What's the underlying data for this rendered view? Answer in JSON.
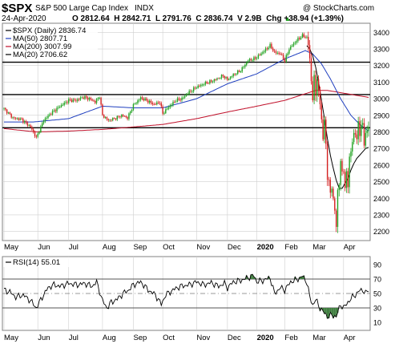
{
  "header": {
    "symbol": "$SPX",
    "name": "S&P 500 Large Cap Index",
    "exchange": "INDX",
    "watermark": "@ StockCharts.com",
    "date": "24-Apr-2020",
    "ohlc_text": "O 2812.64  H 2842.71  L 2791.76  C 2836.74  V 2.9B  Chg +38.94 (+1.39%)",
    "chg_marker": "▲"
  },
  "legend": [
    {
      "label": "$SPX (Daily) 2836.74",
      "color": "#000000",
      "style": "candles"
    },
    {
      "label": "MA(50) 2807.71",
      "color": "#1f3fbf",
      "style": "line"
    },
    {
      "label": "MA(200) 3007.99",
      "color": "#c0102a",
      "style": "line"
    },
    {
      "label": "MA(20) 2706.62",
      "color": "#000000",
      "style": "line"
    }
  ],
  "rsi_legend": {
    "label": "RSI(14) 55.01"
  },
  "colors": {
    "up": "#22a322",
    "down": "#d42020",
    "ma50": "#1f3fbf",
    "ma200": "#c0102a",
    "ma20": "#000000",
    "grid": "#cfcfcf",
    "rsi_fill": "#3d7d3d",
    "hline": "#000000"
  },
  "chart_data": [
    {
      "type": "candlestick",
      "title": "$SPX S&P 500 Large Cap Index INDX",
      "xlabel": "",
      "ylabel": "",
      "ylim": [
        2150,
        3450
      ],
      "y_ticks": [
        2200,
        2300,
        2400,
        2500,
        2600,
        2700,
        2800,
        2900,
        3000,
        3100,
        3200,
        3300,
        3400
      ],
      "x_tick_labels": [
        "May",
        "Jun",
        "Jul",
        "Aug",
        "Sep",
        "Oct",
        "Nov",
        "Dec",
        "2020",
        "Feb",
        "Mar",
        "Apr"
      ],
      "x_ticks_day": [
        0,
        23,
        44,
        67,
        88,
        108,
        131,
        152,
        172,
        191,
        210,
        231
      ],
      "horizontal_lines": [
        3220,
        3025,
        2825
      ],
      "close_anchors": [
        [
          0,
          2940
        ],
        [
          6,
          2885
        ],
        [
          12,
          2875
        ],
        [
          18,
          2830
        ],
        [
          22,
          2765
        ],
        [
          27,
          2870
        ],
        [
          33,
          2920
        ],
        [
          39,
          2960
        ],
        [
          44,
          2990
        ],
        [
          49,
          2990
        ],
        [
          54,
          3010
        ],
        [
          58,
          3000
        ],
        [
          62,
          2980
        ],
        [
          65,
          3015
        ],
        [
          67,
          2900
        ],
        [
          71,
          2870
        ],
        [
          75,
          2880
        ],
        [
          80,
          2900
        ],
        [
          84,
          2885
        ],
        [
          88,
          2960
        ],
        [
          93,
          3005
        ],
        [
          98,
          2985
        ],
        [
          102,
          2965
        ],
        [
          106,
          2980
        ],
        [
          108,
          2910
        ],
        [
          112,
          2950
        ],
        [
          117,
          2990
        ],
        [
          121,
          3000
        ],
        [
          126,
          3040
        ],
        [
          131,
          3070
        ],
        [
          136,
          3090
        ],
        [
          141,
          3105
        ],
        [
          145,
          3120
        ],
        [
          149,
          3140
        ],
        [
          152,
          3115
        ],
        [
          156,
          3145
        ],
        [
          161,
          3170
        ],
        [
          166,
          3230
        ],
        [
          170,
          3240
        ],
        [
          172,
          3250
        ],
        [
          176,
          3280
        ],
        [
          181,
          3320
        ],
        [
          184,
          3280
        ],
        [
          188,
          3270
        ],
        [
          191,
          3230
        ],
        [
          194,
          3300
        ],
        [
          199,
          3350
        ],
        [
          203,
          3380
        ],
        [
          206,
          3370
        ],
        [
          207,
          3330
        ],
        [
          208,
          3230
        ],
        [
          209,
          3120
        ],
        [
          210,
          3000
        ],
        [
          211,
          3110
        ],
        [
          212,
          3040
        ],
        [
          213,
          3130
        ],
        [
          214,
          3020
        ],
        [
          215,
          2980
        ],
        [
          216,
          2880
        ],
        [
          217,
          2750
        ],
        [
          218,
          2880
        ],
        [
          219,
          2710
        ],
        [
          220,
          2530
        ],
        [
          221,
          2520
        ],
        [
          222,
          2400
        ],
        [
          223,
          2480
        ],
        [
          224,
          2410
        ],
        [
          225,
          2300
        ],
        [
          226,
          2240
        ],
        [
          227,
          2450
        ],
        [
          228,
          2480
        ],
        [
          229,
          2630
        ],
        [
          230,
          2540
        ],
        [
          231,
          2580
        ],
        [
          232,
          2470
        ],
        [
          233,
          2530
        ],
        [
          234,
          2490
        ],
        [
          235,
          2660
        ],
        [
          236,
          2660
        ],
        [
          237,
          2750
        ],
        [
          238,
          2790
        ],
        [
          239,
          2790
        ],
        [
          240,
          2760
        ],
        [
          241,
          2840
        ],
        [
          242,
          2800
        ],
        [
          243,
          2850
        ],
        [
          244,
          2820
        ],
        [
          245,
          2740
        ],
        [
          246,
          2800
        ],
        [
          247,
          2790
        ],
        [
          248,
          2840
        ]
      ],
      "ma50_anchors": [
        [
          0,
          2860
        ],
        [
          20,
          2860
        ],
        [
          44,
          2880
        ],
        [
          67,
          2955
        ],
        [
          88,
          2945
        ],
        [
          108,
          2945
        ],
        [
          131,
          3000
        ],
        [
          152,
          3090
        ],
        [
          172,
          3150
        ],
        [
          191,
          3240
        ],
        [
          205,
          3290
        ],
        [
          210,
          3270
        ],
        [
          216,
          3210
        ],
        [
          222,
          3120
        ],
        [
          229,
          3000
        ],
        [
          236,
          2900
        ],
        [
          242,
          2845
        ],
        [
          248,
          2805
        ]
      ],
      "ma200_anchors": [
        [
          0,
          2820
        ],
        [
          22,
          2800
        ],
        [
          44,
          2805
        ],
        [
          67,
          2815
        ],
        [
          88,
          2830
        ],
        [
          108,
          2845
        ],
        [
          131,
          2880
        ],
        [
          152,
          2920
        ],
        [
          172,
          2955
        ],
        [
          191,
          2990
        ],
        [
          205,
          3030
        ],
        [
          212,
          3050
        ],
        [
          220,
          3050
        ],
        [
          230,
          3035
        ],
        [
          240,
          3020
        ],
        [
          248,
          3008
        ]
      ],
      "ma20_anchors": [
        [
          206,
          3320
        ],
        [
          208,
          3300
        ],
        [
          210,
          3260
        ],
        [
          212,
          3190
        ],
        [
          214,
          3100
        ],
        [
          216,
          2990
        ],
        [
          218,
          2880
        ],
        [
          220,
          2760
        ],
        [
          222,
          2660
        ],
        [
          224,
          2580
        ],
        [
          226,
          2510
        ],
        [
          228,
          2460
        ],
        [
          230,
          2460
        ],
        [
          232,
          2490
        ],
        [
          234,
          2520
        ],
        [
          236,
          2570
        ],
        [
          238,
          2610
        ],
        [
          240,
          2640
        ],
        [
          242,
          2660
        ],
        [
          244,
          2680
        ],
        [
          246,
          2700
        ],
        [
          248,
          2707
        ]
      ],
      "last_close": 2836.74
    },
    {
      "type": "line",
      "title": "RSI(14) 55.01",
      "xlabel": "",
      "ylabel": "",
      "ylim": [
        0,
        100
      ],
      "y_ticks": [
        10,
        30,
        50,
        70,
        90
      ],
      "ref_lines": [
        70,
        50,
        30
      ],
      "x_tick_labels": [
        "May",
        "Jun",
        "Jul",
        "Aug",
        "Sep",
        "Oct",
        "Nov",
        "Dec",
        "2020",
        "Feb",
        "Mar",
        "Apr"
      ],
      "rsi_anchors": [
        [
          0,
          55
        ],
        [
          4,
          52
        ],
        [
          8,
          45
        ],
        [
          13,
          48
        ],
        [
          18,
          40
        ],
        [
          22,
          30
        ],
        [
          26,
          45
        ],
        [
          30,
          58
        ],
        [
          34,
          62
        ],
        [
          38,
          60
        ],
        [
          44,
          64
        ],
        [
          50,
          62
        ],
        [
          55,
          64
        ],
        [
          60,
          60
        ],
        [
          63,
          66
        ],
        [
          67,
          40
        ],
        [
          70,
          30
        ],
        [
          73,
          38
        ],
        [
          77,
          42
        ],
        [
          81,
          50
        ],
        [
          85,
          55
        ],
        [
          88,
          62
        ],
        [
          93,
          66
        ],
        [
          98,
          55
        ],
        [
          103,
          48
        ],
        [
          107,
          35
        ],
        [
          110,
          48
        ],
        [
          115,
          55
        ],
        [
          120,
          60
        ],
        [
          126,
          62
        ],
        [
          131,
          66
        ],
        [
          136,
          62
        ],
        [
          141,
          65
        ],
        [
          146,
          60
        ],
        [
          150,
          64
        ],
        [
          152,
          58
        ],
        [
          156,
          66
        ],
        [
          161,
          68
        ],
        [
          166,
          72
        ],
        [
          170,
          75
        ],
        [
          172,
          66
        ],
        [
          176,
          68
        ],
        [
          181,
          72
        ],
        [
          184,
          50
        ],
        [
          188,
          58
        ],
        [
          191,
          55
        ],
        [
          195,
          66
        ],
        [
          200,
          70
        ],
        [
          203,
          74
        ],
        [
          206,
          66
        ],
        [
          208,
          45
        ],
        [
          210,
          34
        ],
        [
          212,
          42
        ],
        [
          214,
          33
        ],
        [
          217,
          25
        ],
        [
          220,
          18
        ],
        [
          223,
          20
        ],
        [
          226,
          18
        ],
        [
          229,
          35
        ],
        [
          231,
          30
        ],
        [
          234,
          38
        ],
        [
          237,
          45
        ],
        [
          240,
          50
        ],
        [
          242,
          54
        ],
        [
          244,
          55
        ],
        [
          246,
          50
        ],
        [
          248,
          55
        ]
      ]
    }
  ]
}
